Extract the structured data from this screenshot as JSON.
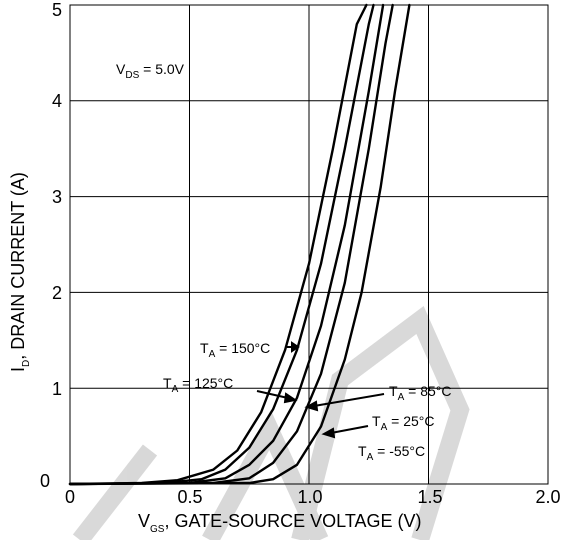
{
  "chart_data": {
    "type": "line",
    "xlabel": {
      "prefix": "V",
      "subscript": "GS",
      "text": ", GATE-SOURCE VOLTAGE (V)"
    },
    "ylabel": {
      "prefix": "I",
      "subscript": "D",
      "text": ", DRAIN CURRENT (A)"
    },
    "xlim": [
      0,
      2.0
    ],
    "ylim": [
      0,
      5
    ],
    "x_ticks": [
      "0",
      "0.5",
      "1.0",
      "1.5",
      "2.0"
    ],
    "y_ticks": [
      "0",
      "1",
      "2",
      "3",
      "4",
      "5"
    ],
    "grid": true,
    "condition": {
      "prefix": "V",
      "subscript": "DS",
      "text": " = 5.0V"
    },
    "series": [
      {
        "name": "T_A = 150°C",
        "label": {
          "prefix": "T",
          "subscript": "A",
          "text": " = 150°C"
        },
        "x": [
          0.0,
          0.3,
          0.45,
          0.6,
          0.7,
          0.8,
          0.9,
          1.0,
          1.1,
          1.2,
          1.24
        ],
        "y": [
          0.0,
          0.01,
          0.04,
          0.15,
          0.35,
          0.75,
          1.4,
          2.3,
          3.5,
          4.8,
          5.0
        ]
      },
      {
        "name": "T_A = 125°C",
        "label": {
          "prefix": "T",
          "subscript": "A",
          "text": " = 125°C"
        },
        "x": [
          0.0,
          0.4,
          0.55,
          0.65,
          0.75,
          0.85,
          0.95,
          1.05,
          1.15,
          1.25,
          1.27
        ],
        "y": [
          0.0,
          0.01,
          0.05,
          0.15,
          0.38,
          0.78,
          1.4,
          2.3,
          3.5,
          4.8,
          5.0
        ]
      },
      {
        "name": "T_A = 85°C",
        "label": {
          "prefix": "T",
          "subscript": "A",
          "text": " = 85°C"
        },
        "x": [
          0.0,
          0.5,
          0.65,
          0.75,
          0.85,
          0.95,
          1.05,
          1.15,
          1.25,
          1.31
        ],
        "y": [
          0.0,
          0.01,
          0.06,
          0.2,
          0.45,
          0.9,
          1.65,
          2.7,
          4.1,
          5.0
        ]
      },
      {
        "name": "T_A = 25°C",
        "label": {
          "prefix": "T",
          "subscript": "A",
          "text": " = 25°C"
        },
        "x": [
          0.0,
          0.6,
          0.75,
          0.85,
          0.95,
          1.05,
          1.15,
          1.25,
          1.32,
          1.35
        ],
        "y": [
          0.0,
          0.01,
          0.06,
          0.22,
          0.55,
          1.15,
          2.1,
          3.5,
          4.6,
          5.0
        ]
      },
      {
        "name": "T_A = -55°C",
        "label": {
          "prefix": "T",
          "subscript": "A",
          "text": " = -55°C"
        },
        "x": [
          0.0,
          0.75,
          0.85,
          0.95,
          1.05,
          1.15,
          1.22,
          1.3,
          1.36,
          1.42
        ],
        "y": [
          0.0,
          0.01,
          0.05,
          0.2,
          0.6,
          1.3,
          2.0,
          3.1,
          4.1,
          5.0
        ]
      }
    ],
    "colors": {
      "line": "#000000",
      "grid": "#000000",
      "watermark": "#cccccc"
    }
  }
}
